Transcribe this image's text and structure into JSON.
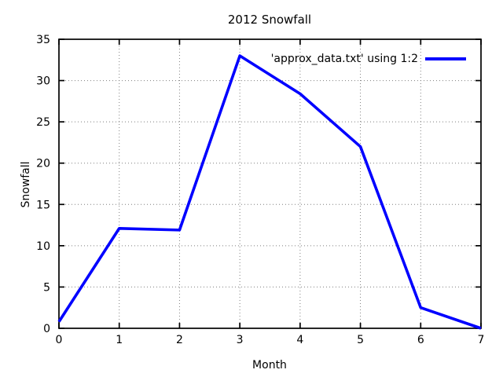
{
  "chart_data": {
    "type": "line",
    "title": "2012 Snowfall",
    "xlabel": "Month",
    "ylabel": "Snowfall",
    "xlim": [
      0,
      7
    ],
    "ylim": [
      0,
      35
    ],
    "xticks": [
      0,
      1,
      2,
      3,
      4,
      5,
      6,
      7
    ],
    "yticks": [
      0,
      5,
      10,
      15,
      20,
      25,
      30,
      35
    ],
    "grid": "dotted",
    "legend_position": "top-right-inside",
    "background_color": "#ffffff",
    "axis_color": "#000000",
    "grid_color": "#7f7f7f",
    "series": [
      {
        "name": "'approx_data.txt' using 1:2",
        "color": "#0000ff",
        "x": [
          0,
          1,
          2,
          3,
          4,
          5,
          6,
          7
        ],
        "y": [
          0.8,
          12.1,
          11.9,
          33.0,
          28.4,
          22.0,
          2.5,
          0.0
        ]
      }
    ]
  }
}
